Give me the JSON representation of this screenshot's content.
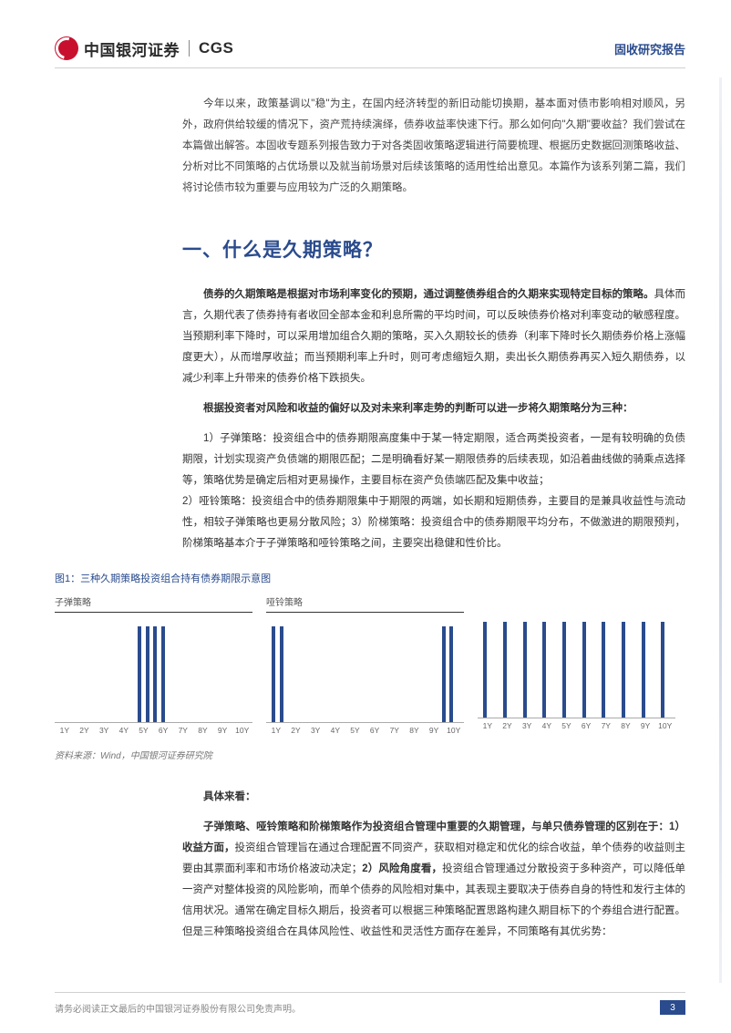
{
  "header": {
    "logo_cn": "中国银河证券",
    "logo_en": "CGS",
    "report_type": "固收研究报告"
  },
  "intro": "今年以来，政策基调以\"稳\"为主，在国内经济转型的新旧动能切换期，基本面对债市影响相对顺风，另外，政府供给较缓的情况下，资产荒持续演绎，债券收益率快速下行。那么如何向\"久期\"要收益？我们尝试在本篇做出解答。本固收专题系列报告致力于对各类固收策略逻辑进行简要梳理、根据历史数据回测策略收益、分析对比不同策略的占优场景以及就当前场景对后续该策略的适用性给出意见。本篇作为该系列第二篇，我们将讨论债市较为重要与应用较为广泛的久期策略。",
  "section1": {
    "title": "一、什么是久期策略？",
    "p1_bold_lead": "债券的久期策略是根据对市场利率变化的预期，通过调整债券组合的久期来实现特定目标的策略。",
    "p1_rest": "具体而言，久期代表了债券持有者收回全部本金和利息所需的平均时间，可以反映债券价格对利率变动的敏感程度。当预期利率下降时，可以采用增加组合久期的策略，买入久期较长的债券（利率下降时长久期债券价格上涨幅度更大），从而增厚收益；而当预期利率上升时，则可考虑缩短久期，卖出长久期债券再买入短久期债券，以减少利率上升带来的债券价格下跌损失。",
    "p2_bold": "根据投资者对风险和收益的偏好以及对未来利率走势的判断可以进一步将久期策略分为三种：",
    "list1_bold": "1）子弹策略：",
    "list1_text": "投资组合中的债券期限高度集中于某一特定期限，适合两类投资者，一是有较明确的负债期限，计划实现资产负债端的期限匹配；二是明确看好某一期限债券的后续表现，如沿着曲线做的骑乘点选择等，策略优势是确定后相对更易操作，主要目标在资产负债端匹配及集中收益；",
    "list2_bold": "2）哑铃策略：",
    "list2_text": "投资组合中的债券期限集中于期限的两端，如长期和短期债券，主要目的是兼具收益性与流动性，相较子弹策略也更易分散风险；",
    "list3_bold": "3）阶梯策略：",
    "list3_text": "投资组合中的债券期限平均分布，不做激进的期限预判，阶梯策略基本介于子弹策略和哑铃策略之间，主要突出稳健和性价比。"
  },
  "figure": {
    "caption": "图1：三种久期策略投资组合持有债券期限示意图",
    "source": "资料来源：Wind，中国银河证券研究院",
    "charts": [
      {
        "title": "子弹策略",
        "xticks": [
          "1Y",
          "2Y",
          "3Y",
          "4Y",
          "5Y",
          "6Y",
          "7Y",
          "8Y",
          "9Y",
          "10Y"
        ],
        "bars": [
          {
            "x_pct": 42,
            "h_pct": 92
          },
          {
            "x_pct": 46,
            "h_pct": 92
          },
          {
            "x_pct": 50,
            "h_pct": 92
          },
          {
            "x_pct": 54,
            "h_pct": 92
          }
        ],
        "bar_color": "#2a4b8d"
      },
      {
        "title": "哑铃策略",
        "xticks": [
          "1Y",
          "2Y",
          "3Y",
          "4Y",
          "5Y",
          "6Y",
          "7Y",
          "8Y",
          "9Y",
          "10Y"
        ],
        "bars": [
          {
            "x_pct": 3,
            "h_pct": 92
          },
          {
            "x_pct": 7,
            "h_pct": 92
          },
          {
            "x_pct": 89,
            "h_pct": 92
          },
          {
            "x_pct": 93,
            "h_pct": 92
          }
        ],
        "bar_color": "#2a4b8d"
      },
      {
        "title": "",
        "xticks": [
          "1Y",
          "2Y",
          "3Y",
          "4Y",
          "5Y",
          "6Y",
          "7Y",
          "8Y",
          "9Y",
          "10Y"
        ],
        "bars": [
          {
            "x_pct": 3,
            "h_pct": 92
          },
          {
            "x_pct": 13,
            "h_pct": 92
          },
          {
            "x_pct": 23,
            "h_pct": 92
          },
          {
            "x_pct": 33,
            "h_pct": 92
          },
          {
            "x_pct": 43,
            "h_pct": 92
          },
          {
            "x_pct": 53,
            "h_pct": 92
          },
          {
            "x_pct": 63,
            "h_pct": 92
          },
          {
            "x_pct": 73,
            "h_pct": 92
          },
          {
            "x_pct": 83,
            "h_pct": 92
          },
          {
            "x_pct": 93,
            "h_pct": 92
          }
        ],
        "bar_color": "#2a4b8d"
      }
    ]
  },
  "section1b": {
    "p3_bold": "具体来看：",
    "p4_bold_lead": "子弹策略、哑铃策略和阶梯策略作为投资组合管理中重要的久期管理，与单只债券管理的区别在于：1）收益方面，",
    "p4_mid1": "投资组合管理旨在通过合理配置不同资产，获取相对稳定和优化的综合收益，单个债券的收益则主要由其票面利率和市场价格波动决定；",
    "p4_bold2": "2）风险角度看，",
    "p4_rest": "投资组合管理通过分散投资于多种资产，可以降低单一资产对整体投资的风险影响，而单个债券的风险相对集中，其表现主要取决于债券自身的特性和发行主体的信用状况。通常在确定目标久期后，投资者可以根据三种策略配置思路构建久期目标下的个券组合进行配置。但是三种策略投资组合在具体风险性、收益性和灵活性方面存在差异，不同策略有其优劣势："
  },
  "footer": {
    "disclaimer": "请务必阅读正文最后的中国银河证券股份有限公司免责声明。",
    "page": "3"
  },
  "colors": {
    "brand_red": "#c8102e",
    "brand_blue": "#2a4b8d",
    "text": "#333333",
    "muted": "#777777",
    "border": "#d0d0d0"
  }
}
